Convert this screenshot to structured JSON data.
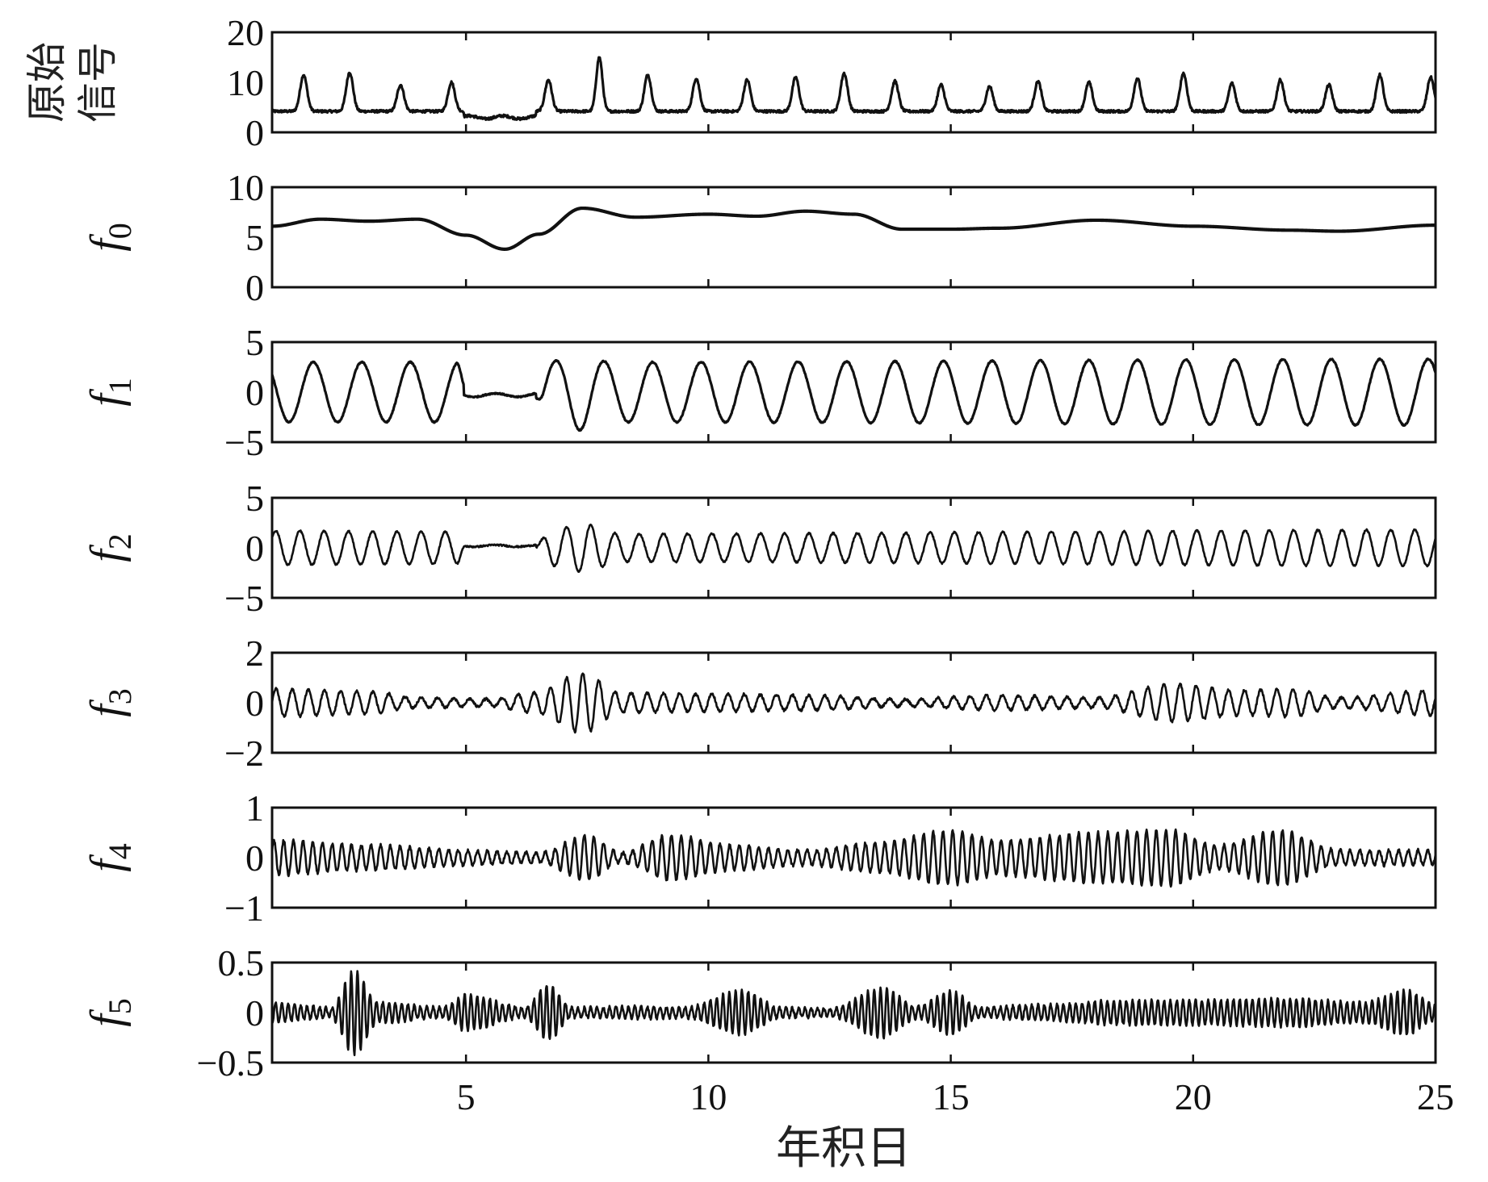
{
  "chart_data": {
    "type": "line",
    "xlabel": "年积日",
    "x_range": [
      1,
      25
    ],
    "x_ticks": [
      "5",
      "10",
      "15",
      "20",
      "25"
    ],
    "x_tick_values": [
      5,
      10,
      15,
      20,
      25
    ],
    "line_color": "#111111",
    "panels": [
      {
        "id": "original",
        "ylabel": "原始信号",
        "ylabel_lines": [
          "原始",
          "信号"
        ],
        "ylim": [
          0,
          20
        ],
        "yticks": [
          "0",
          "10",
          "20"
        ],
        "ytick_values": [
          0,
          10,
          20
        ],
        "model": {
          "kind": "peaks",
          "base": 4.2,
          "peaks": [
            {
              "x": 1.65,
              "h": 11.5,
              "w": 0.1
            },
            {
              "x": 2.6,
              "h": 12.0,
              "w": 0.1
            },
            {
              "x": 3.65,
              "h": 9.5,
              "w": 0.1
            },
            {
              "x": 4.7,
              "h": 10.0,
              "w": 0.1
            },
            {
              "x": 6.7,
              "h": 10.5,
              "w": 0.1
            },
            {
              "x": 7.75,
              "h": 15.0,
              "w": 0.09
            },
            {
              "x": 8.75,
              "h": 11.5,
              "w": 0.1
            },
            {
              "x": 9.75,
              "h": 10.8,
              "w": 0.1
            },
            {
              "x": 10.8,
              "h": 10.5,
              "w": 0.1
            },
            {
              "x": 11.8,
              "h": 11.0,
              "w": 0.1
            },
            {
              "x": 12.8,
              "h": 11.8,
              "w": 0.1
            },
            {
              "x": 13.85,
              "h": 10.2,
              "w": 0.1
            },
            {
              "x": 14.8,
              "h": 9.5,
              "w": 0.1
            },
            {
              "x": 15.8,
              "h": 9.2,
              "w": 0.1
            },
            {
              "x": 16.8,
              "h": 10.2,
              "w": 0.1
            },
            {
              "x": 17.85,
              "h": 10.0,
              "w": 0.1
            },
            {
              "x": 18.85,
              "h": 10.8,
              "w": 0.1
            },
            {
              "x": 19.8,
              "h": 11.8,
              "w": 0.1
            },
            {
              "x": 20.8,
              "h": 9.8,
              "w": 0.1
            },
            {
              "x": 21.8,
              "h": 10.5,
              "w": 0.1
            },
            {
              "x": 22.8,
              "h": 9.5,
              "w": 0.1
            },
            {
              "x": 23.85,
              "h": 11.5,
              "w": 0.1
            },
            {
              "x": 24.9,
              "h": 11.0,
              "w": 0.1
            }
          ],
          "noise": 0.25,
          "gap": {
            "from": 4.95,
            "to": 6.45,
            "level": 3.0
          }
        }
      },
      {
        "id": "f0",
        "ylabel": "f",
        "ylabel_sub": "0",
        "ylim": [
          0,
          10
        ],
        "yticks": [
          "0",
          "5",
          "10"
        ],
        "ytick_values": [
          0,
          5,
          10
        ],
        "model": {
          "kind": "trend",
          "points": [
            [
              1,
              6.1
            ],
            [
              2,
              6.8
            ],
            [
              3,
              6.6
            ],
            [
              4,
              6.8
            ],
            [
              5,
              5.2
            ],
            [
              5.8,
              3.8
            ],
            [
              6.5,
              5.3
            ],
            [
              7.4,
              7.9
            ],
            [
              8.5,
              7.0
            ],
            [
              10,
              7.3
            ],
            [
              11,
              7.1
            ],
            [
              12,
              7.6
            ],
            [
              13,
              7.3
            ],
            [
              14,
              5.8
            ],
            [
              15,
              5.8
            ],
            [
              16,
              5.9
            ],
            [
              18,
              6.7
            ],
            [
              20,
              6.1
            ],
            [
              22,
              5.7
            ],
            [
              23,
              5.6
            ],
            [
              25,
              6.2
            ]
          ]
        }
      },
      {
        "id": "f1",
        "ylabel": "f",
        "ylabel_sub": "1",
        "ylim": [
          -5,
          5
        ],
        "yticks": [
          "−5",
          "0",
          "5"
        ],
        "ytick_values": [
          -5,
          0,
          5
        ],
        "model": {
          "kind": "osc",
          "period": 1.0,
          "phase": 0.4,
          "envelope": [
            [
              1,
              3.0
            ],
            [
              4.8,
              3.0
            ],
            [
              5.0,
              0.6
            ],
            [
              6.4,
              0.6
            ],
            [
              6.7,
              3.0
            ],
            [
              7.3,
              3.8
            ],
            [
              8.0,
              3.0
            ],
            [
              25,
              3.3
            ]
          ],
          "noise": 0.06,
          "gap": {
            "from": 4.95,
            "to": 6.45,
            "level": -0.3
          }
        }
      },
      {
        "id": "f2",
        "ylabel": "f",
        "ylabel_sub": "2",
        "ylim": [
          -5,
          5
        ],
        "yticks": [
          "−5",
          "0",
          "5"
        ],
        "ytick_values": [
          -5,
          0,
          5
        ],
        "model": {
          "kind": "osc",
          "period": 0.5,
          "phase": 0.1,
          "envelope": [
            [
              1,
              1.7
            ],
            [
              4.8,
              1.6
            ],
            [
              5.0,
              0.3
            ],
            [
              6.4,
              0.3
            ],
            [
              6.8,
              1.8
            ],
            [
              7.4,
              2.4
            ],
            [
              8.2,
              1.4
            ],
            [
              25,
              1.8
            ]
          ],
          "noise": 0.08,
          "gap": {
            "from": 4.95,
            "to": 6.45,
            "level": 0.2
          }
        }
      },
      {
        "id": "f3",
        "ylabel": "f",
        "ylabel_sub": "3",
        "ylim": [
          -2,
          2
        ],
        "yticks": [
          "−2",
          "0",
          "2"
        ],
        "ytick_values": [
          -2,
          0,
          2
        ],
        "model": {
          "kind": "osc",
          "period": 0.333,
          "phase": 0.0,
          "envelope": [
            [
              1,
              0.55
            ],
            [
              3,
              0.45
            ],
            [
              4,
              0.2
            ],
            [
              5.5,
              0.15
            ],
            [
              6.4,
              0.4
            ],
            [
              7.4,
              1.2
            ],
            [
              8.2,
              0.4
            ],
            [
              10,
              0.35
            ],
            [
              12,
              0.3
            ],
            [
              14,
              0.15
            ],
            [
              16,
              0.3
            ],
            [
              18,
              0.2
            ],
            [
              19.6,
              0.75
            ],
            [
              21,
              0.5
            ],
            [
              22,
              0.55
            ],
            [
              23,
              0.2
            ],
            [
              25,
              0.5
            ]
          ],
          "noise": 0.05
        }
      },
      {
        "id": "f4",
        "ylabel": "f",
        "ylabel_sub": "4",
        "ylim": [
          -1,
          1
        ],
        "yticks": [
          "−1",
          "0",
          "1"
        ],
        "ytick_values": [
          -1,
          0,
          1
        ],
        "model": {
          "kind": "osc",
          "period": 0.2,
          "phase": 0.05,
          "envelope": [
            [
              1,
              0.35
            ],
            [
              3,
              0.25
            ],
            [
              5,
              0.15
            ],
            [
              6.5,
              0.1
            ],
            [
              7.5,
              0.45
            ],
            [
              8.2,
              0.1
            ],
            [
              9.2,
              0.45
            ],
            [
              10.5,
              0.25
            ],
            [
              12,
              0.15
            ],
            [
              13.5,
              0.3
            ],
            [
              15,
              0.55
            ],
            [
              16,
              0.35
            ],
            [
              18,
              0.5
            ],
            [
              19.5,
              0.55
            ],
            [
              20.5,
              0.25
            ],
            [
              21.8,
              0.55
            ],
            [
              23,
              0.15
            ],
            [
              25,
              0.15
            ]
          ],
          "noise": 0.03
        }
      },
      {
        "id": "f5",
        "ylabel": "f",
        "ylabel_sub": "5",
        "ylim": [
          -0.5,
          0.5
        ],
        "yticks": [
          "−0.5",
          "0",
          "0.5"
        ],
        "ytick_values": [
          -0.5,
          0,
          0.5
        ],
        "model": {
          "kind": "osc",
          "period": 0.13,
          "phase": 0.0,
          "envelope": [
            [
              1,
              0.1
            ],
            [
              2.2,
              0.05
            ],
            [
              2.7,
              0.42
            ],
            [
              3.2,
              0.1
            ],
            [
              4.5,
              0.05
            ],
            [
              5.0,
              0.18
            ],
            [
              6.2,
              0.05
            ],
            [
              6.7,
              0.28
            ],
            [
              7.2,
              0.05
            ],
            [
              8.5,
              0.06
            ],
            [
              9.5,
              0.05
            ],
            [
              10.7,
              0.22
            ],
            [
              11.5,
              0.05
            ],
            [
              12.5,
              0.04
            ],
            [
              13.6,
              0.25
            ],
            [
              14.3,
              0.06
            ],
            [
              15.0,
              0.22
            ],
            [
              15.6,
              0.05
            ],
            [
              17.0,
              0.08
            ],
            [
              18.5,
              0.12
            ],
            [
              20.2,
              0.12
            ],
            [
              22.0,
              0.14
            ],
            [
              23.5,
              0.1
            ],
            [
              24.4,
              0.22
            ],
            [
              25,
              0.08
            ]
          ],
          "noise": 0.015
        }
      }
    ]
  }
}
